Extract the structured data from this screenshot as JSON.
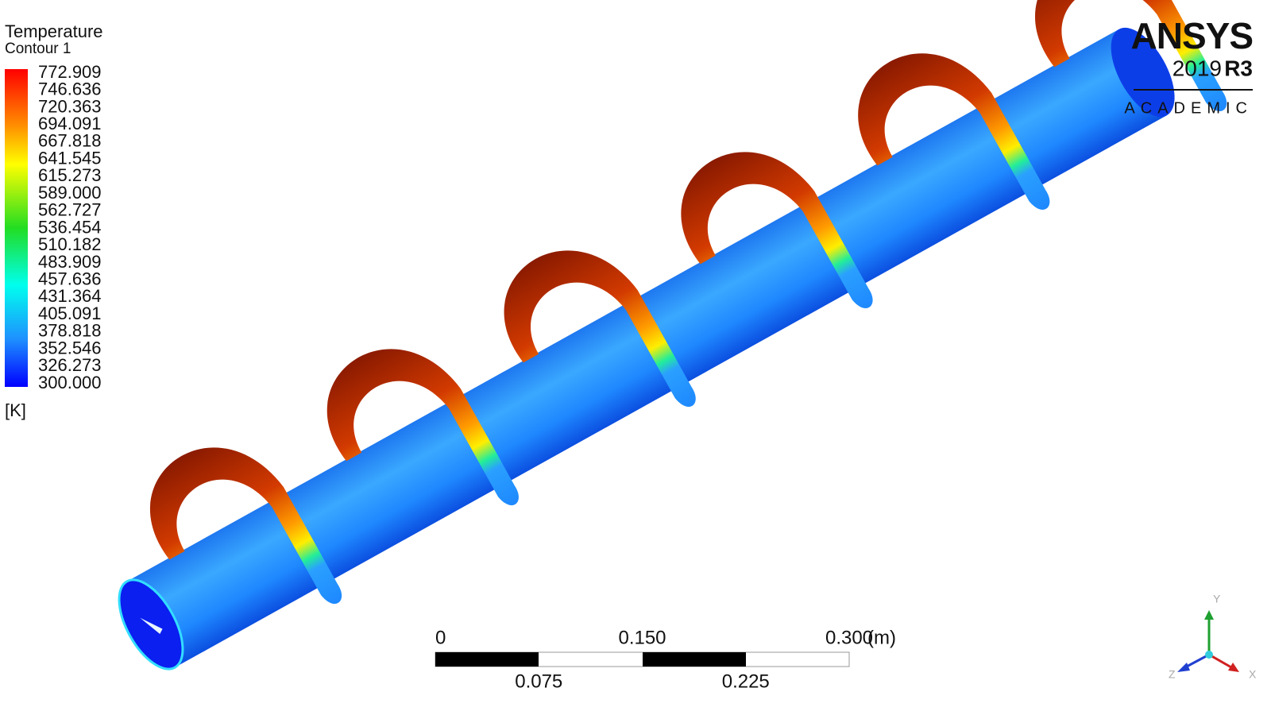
{
  "legend": {
    "title": "Temperature",
    "subtitle": "Contour 1",
    "labels": [
      "772.909",
      "746.636",
      "720.363",
      "694.091",
      "667.818",
      "641.545",
      "615.273",
      "589.000",
      "562.727",
      "536.454",
      "510.182",
      "483.909",
      "457.636",
      "431.364",
      "405.091",
      "378.818",
      "352.546",
      "326.273",
      "300.000"
    ],
    "unit": "[K]"
  },
  "logo": {
    "brand": "ANSYS",
    "version": "2019",
    "release": "R3",
    "edition": "ACADEMIC"
  },
  "scale_bar": {
    "top_labels": [
      "0",
      "0.150",
      "0.300"
    ],
    "unit": "(m)",
    "bottom_labels": [
      "0.075",
      "0.225"
    ]
  },
  "triad": {
    "y": "Y",
    "z": "Z",
    "x": "X"
  }
}
